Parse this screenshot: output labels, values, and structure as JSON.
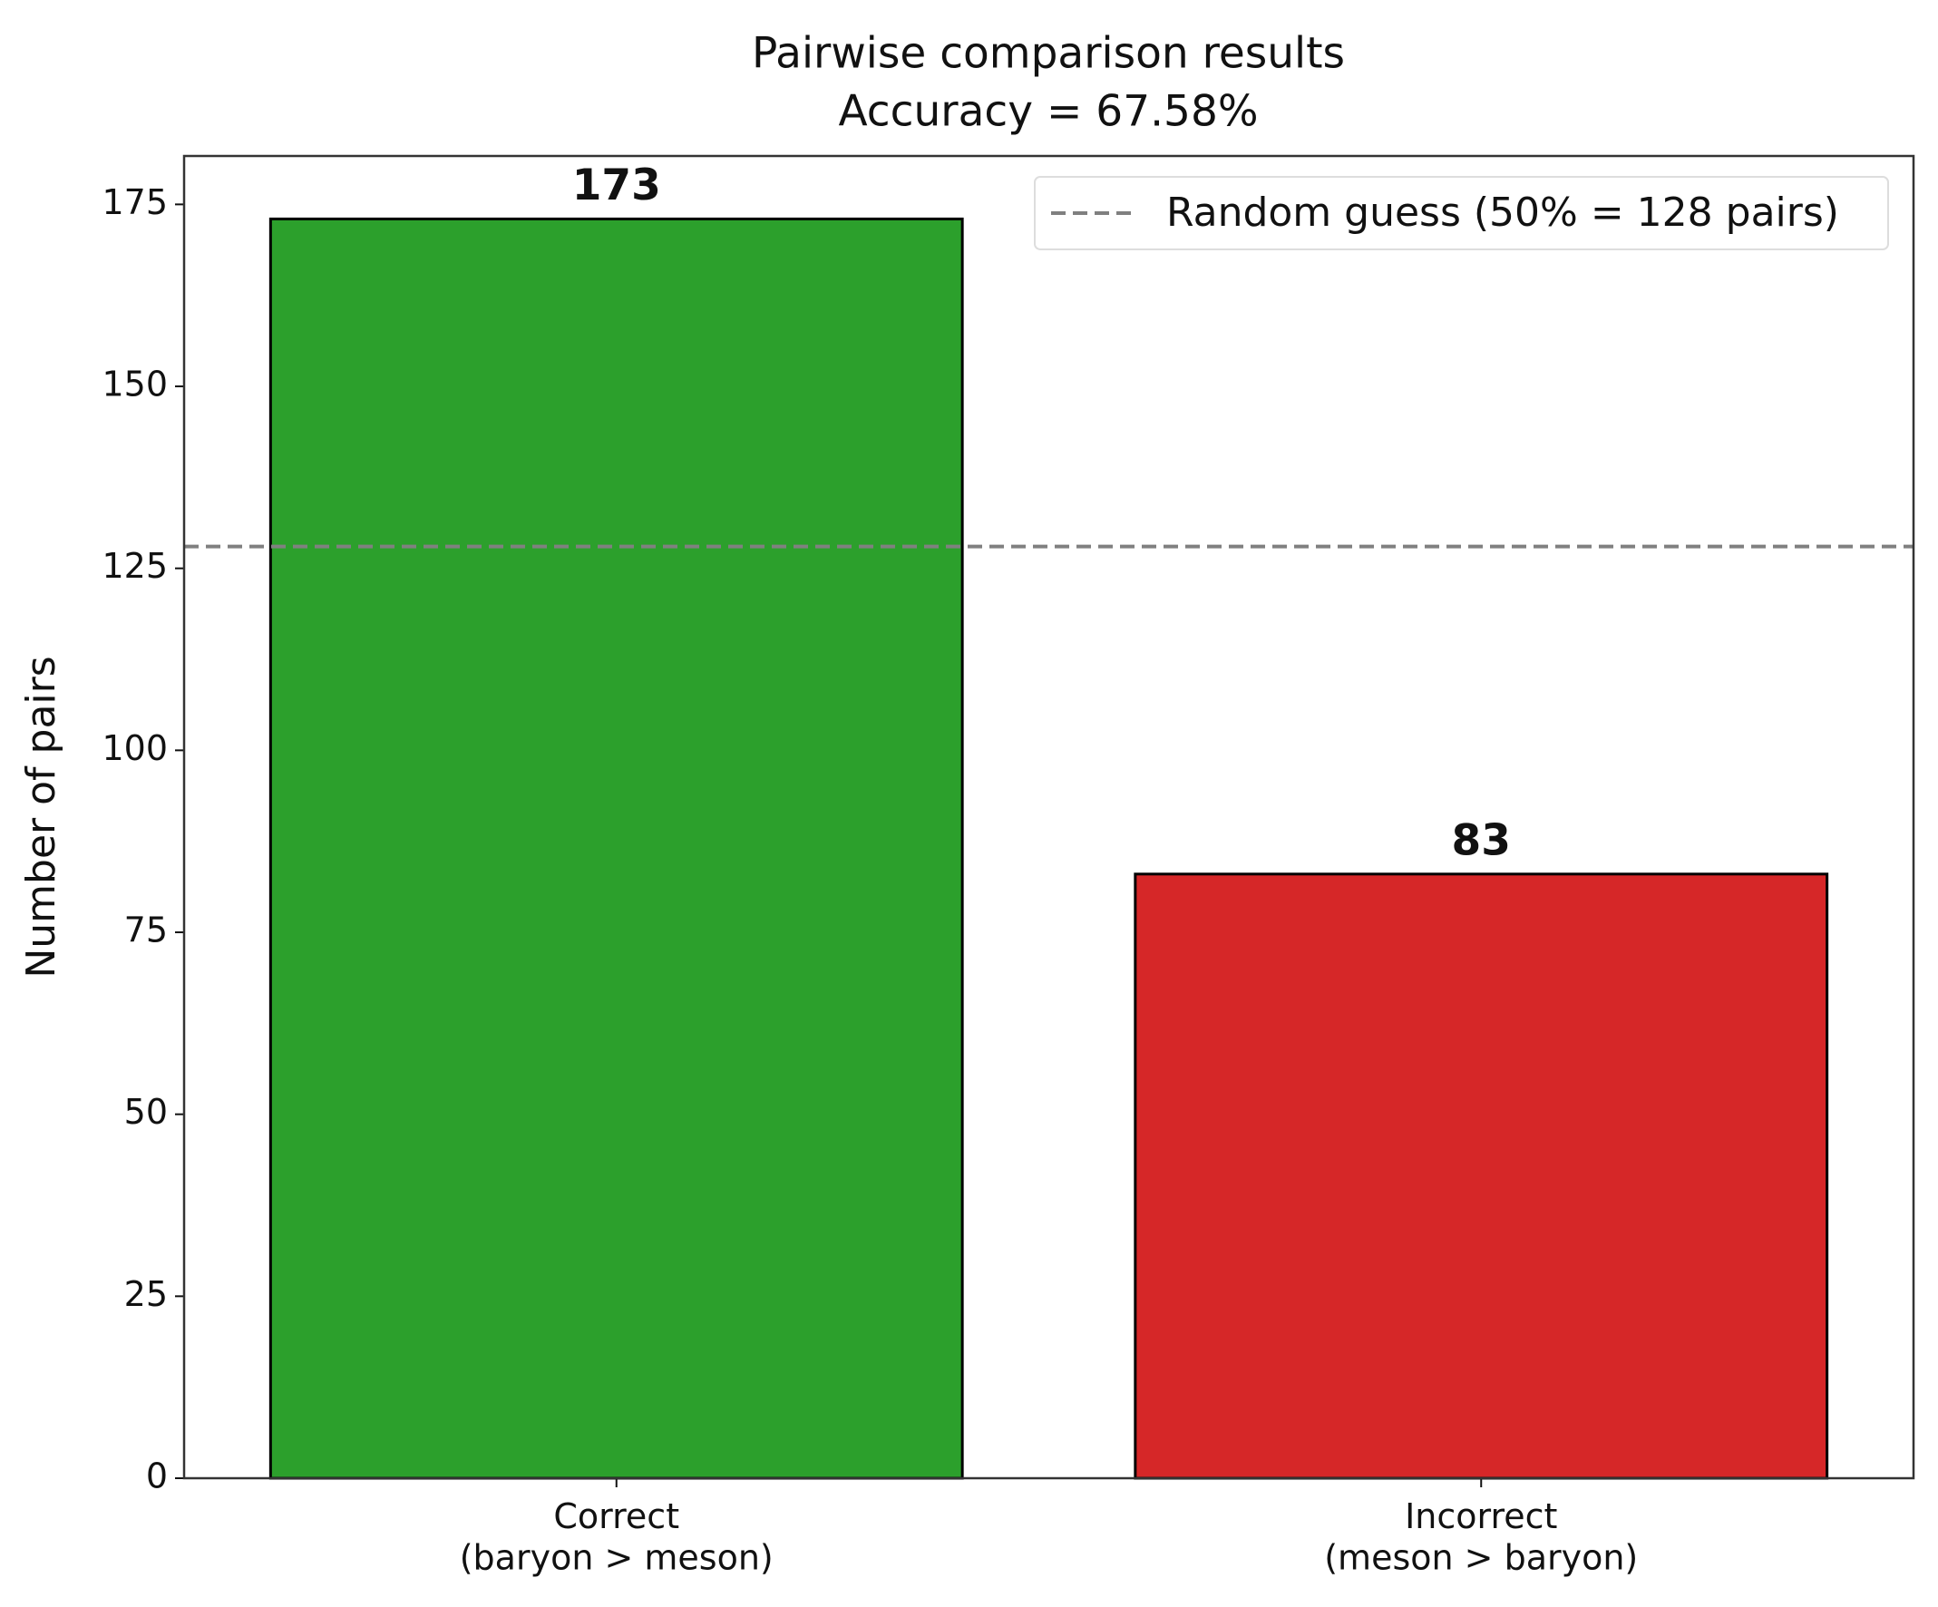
{
  "chart_data": {
    "type": "bar",
    "title": "Pairwise comparison results",
    "subtitle": "Accuracy = 67.58%",
    "y_label": "Number of pairs",
    "categories": [
      "Correct\n(baryon > meson)",
      "Incorrect\n(meson > baryon)"
    ],
    "values": [
      173,
      83
    ],
    "colors": [
      "#2ca02c",
      "#d62728"
    ],
    "edge_color": "#000000",
    "ylim": [
      0,
      181.65
    ],
    "yticks": [
      0,
      25,
      50,
      75,
      100,
      125,
      150,
      175
    ],
    "reference_line": {
      "value": 128,
      "label": "Random guess (50% = 128 pairs)",
      "color": "#808080"
    },
    "legend": "upper right",
    "grid": false
  }
}
